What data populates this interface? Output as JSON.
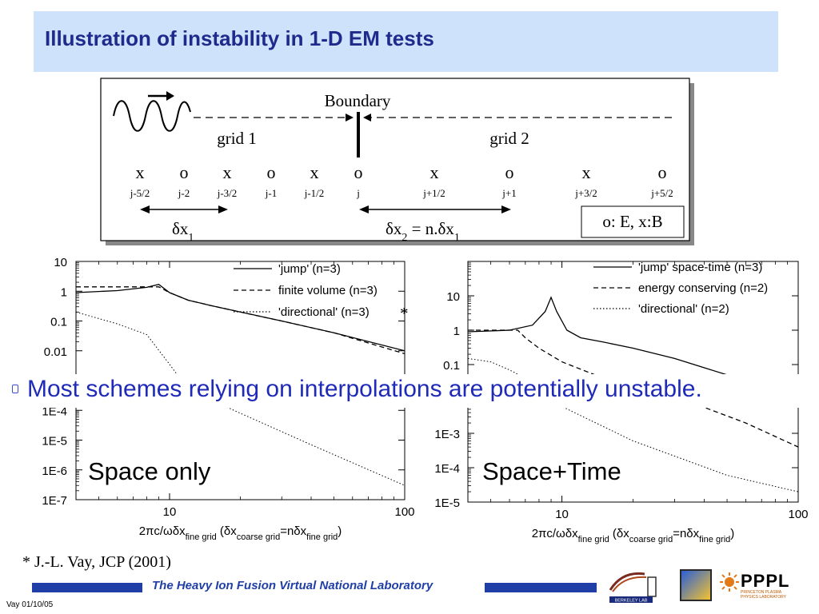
{
  "title": "Illustration of instability in 1-D EM tests",
  "diagram": {
    "boundary_label": "Boundary",
    "grid1_label": "grid 1",
    "grid2_label": "grid 2",
    "markers": [
      "x",
      "o",
      "x",
      "o",
      "x",
      "o",
      "x",
      "o",
      "x",
      "o"
    ],
    "indices": [
      "j-5/2",
      "j-2",
      "j-3/2",
      "j-1",
      "j-1/2",
      "j",
      "j+1/2",
      "j+1",
      "j+3/2",
      "j+5/2"
    ],
    "dx1_label": "δx1",
    "dx2_label": "δx2 = n.δx1",
    "legend_box": "o: E, x:B"
  },
  "banner": "Most schemes relying on interpolations are potentially unstable.",
  "footnote": "* J.-L. Vay, JCP (2001)",
  "footer": {
    "lab": "The Heavy Ion Fusion Virtual National Laboratory",
    "date": "Vay 01/10/05",
    "pppl": "PPPL",
    "pppl_sub": "PRINCETON PLASMA PHYSICS LABORATORY",
    "berkeley": "BERKELEY LAB"
  },
  "chart_data": [
    {
      "type": "line",
      "title": "Space only",
      "xlabel": "2πc/ωδx_fine grid (δx_coarse grid=nδx_fine grid)",
      "x_scale": "log",
      "y_scale": "log",
      "xlim": [
        4,
        100
      ],
      "ylim": [
        1e-07,
        10
      ],
      "y_ticks": [
        "10",
        "1",
        "0.1",
        "0.01",
        "1E-4",
        "1E-5",
        "1E-6",
        "1E-7"
      ],
      "x_ticks": [
        "10",
        "100"
      ],
      "legend_marker": "*",
      "series": [
        {
          "name": "'jump' (n=3)",
          "dash": "solid",
          "x": [
            4,
            6,
            8,
            9,
            10,
            12,
            15,
            20,
            30,
            50,
            100
          ],
          "y": [
            0.9,
            1.05,
            1.35,
            1.7,
            0.9,
            0.5,
            0.33,
            0.2,
            0.1,
            0.04,
            0.01
          ]
        },
        {
          "name": "finite volume (n=3)",
          "dash": "dashed",
          "x": [
            4,
            9,
            10,
            12,
            15,
            20,
            30,
            50,
            100
          ],
          "y": [
            1.4,
            1.4,
            0.9,
            0.5,
            0.33,
            0.2,
            0.1,
            0.04,
            0.008
          ]
        },
        {
          "name": "'directional' (n=3)",
          "dash": "dotted",
          "x": [
            4,
            6,
            8,
            10,
            12,
            20,
            40,
            100
          ],
          "y": [
            0.2,
            0.08,
            0.035,
            0.0035,
            0.0005,
            8e-05,
            7e-06,
            3e-07
          ]
        }
      ]
    },
    {
      "type": "line",
      "title": "Space+Time",
      "xlabel": "2πc/ωδx_fine grid (δx_coarse grid=nδx_fine grid)",
      "x_scale": "log",
      "y_scale": "log",
      "xlim": [
        4,
        100
      ],
      "ylim": [
        1e-05,
        100
      ],
      "y_ticks": [
        "10",
        "1",
        "0.1",
        "1E-3",
        "1E-4",
        "1E-5"
      ],
      "x_ticks": [
        "10",
        "100"
      ],
      "series": [
        {
          "name": "'jump' space-time (n=3)",
          "dash": "solid",
          "x": [
            4,
            6,
            7.5,
            8.5,
            9,
            9.5,
            10.5,
            12,
            15,
            20,
            30,
            50,
            100
          ],
          "y": [
            0.9,
            1.0,
            1.4,
            3.5,
            9,
            3.5,
            1.0,
            0.6,
            0.45,
            0.3,
            0.15,
            0.05,
            0.01
          ]
        },
        {
          "name": "energy conserving (n=2)",
          "dash": "dashed",
          "x": [
            4,
            6.5,
            7,
            8,
            10,
            15,
            30,
            60,
            100
          ],
          "y": [
            1.0,
            1.0,
            0.6,
            0.3,
            0.12,
            0.04,
            0.012,
            0.002,
            0.0004
          ]
        },
        {
          "name": "'directional' (n=2)",
          "dash": "dotted",
          "x": [
            4,
            5,
            6,
            7,
            8,
            10,
            20,
            50,
            100
          ],
          "y": [
            0.15,
            0.12,
            0.07,
            0.04,
            0.02,
            0.006,
            0.0006,
            6e-05,
            2e-05
          ]
        }
      ]
    }
  ]
}
